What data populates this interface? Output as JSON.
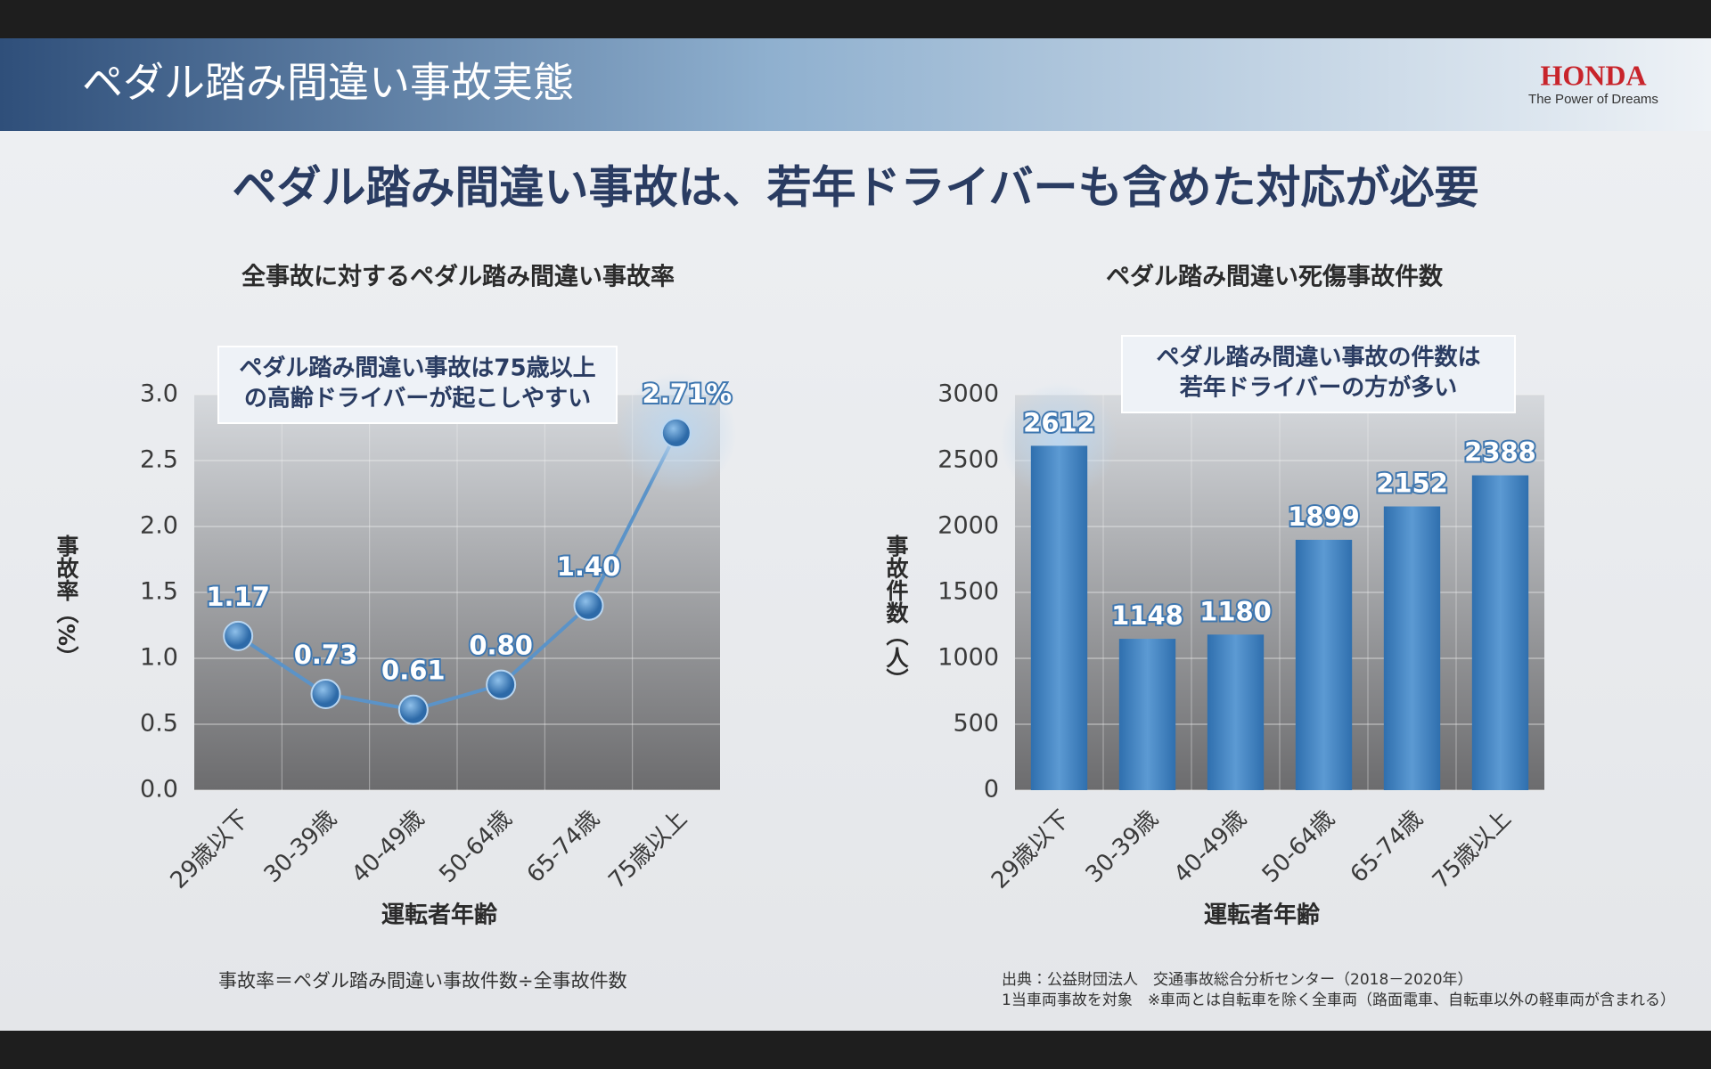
{
  "header": {
    "title": "ペダル踏み間違い事故実態",
    "brand": "HONDA",
    "tagline": "The Power of Dreams"
  },
  "headline": "ペダル踏み間違い事故は、若年ドライバーも含めた対応が必要",
  "chart_data": [
    {
      "type": "line",
      "title": "全事故に対するペダル踏み間違い事故率",
      "categories": [
        "29歳以下",
        "30-39歳",
        "40-49歳",
        "50-64歳",
        "65-74歳",
        "75歳以上"
      ],
      "values": [
        1.17,
        0.73,
        0.61,
        0.8,
        1.4,
        2.71
      ],
      "value_labels": [
        "1.17",
        "0.73",
        "0.61",
        "0.80",
        "1.40",
        "2.71%"
      ],
      "color": "#5b93c8",
      "ylim": [
        0,
        3
      ],
      "yticks": [
        {
          "value": 0,
          "label": "0.0"
        },
        0.5,
        {
          "value": 1,
          "label": "1.0"
        },
        1.5,
        {
          "value": 2,
          "label": "2.0"
        },
        2.5,
        {
          "value": 3,
          "label": "3.0"
        }
      ],
      "ylabel": "事故率（%）",
      "xlabel": "運転者年齢",
      "grid": true,
      "annotation": [
        "ペダル踏み間違い事故は75歳以上",
        "の高齢ドライバーが起こしやすい"
      ]
    },
    {
      "type": "bar",
      "title": "ペダル踏み間違い死傷事故件数",
      "categories": [
        "29歳以下",
        "30-39歳",
        "40-49歳",
        "50-64歳",
        "65-74歳",
        "75歳以上"
      ],
      "values": [
        2612,
        1148,
        1180,
        1899,
        2152,
        2388
      ],
      "color": "#3f82c4",
      "ylim": [
        0,
        3000
      ],
      "yticks": [
        0,
        500,
        1000,
        1500,
        2000,
        2500,
        3000
      ],
      "ylabel": "事故件数（人）",
      "xlabel": "運転者年齢",
      "grid": true,
      "annotation": [
        "ペダル踏み間違い事故の件数は",
        "若年ドライバーの方が多い"
      ]
    }
  ],
  "footnotes": {
    "formula": "事故率＝ペダル踏み間違い事故件数÷全事故件数",
    "source": [
      "出典：公益財団法人　交通事故総合分析センター（2018－2020年）",
      "1当車両事故を対象　※車両とは自転車を除く全車両（路面電車、自転車以外の軽車両が含まれる）"
    ]
  }
}
